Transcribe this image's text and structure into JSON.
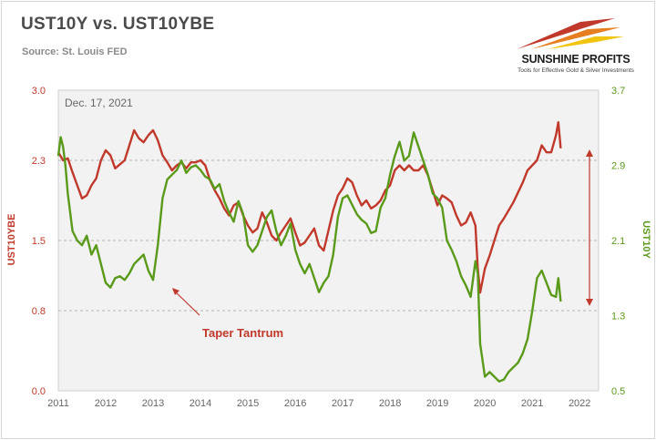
{
  "chart_data": {
    "type": "line",
    "title": "UST10Y vs. UST10YBE",
    "subtitle": "Source: St. Louis FED",
    "date_label": "Dec. 17, 2021",
    "annotation": "Taper Tantrum",
    "x_ticks": [
      "2011",
      "2012",
      "2013",
      "2014",
      "2015",
      "2016",
      "2017",
      "2018",
      "2019",
      "2020",
      "2021",
      "2022"
    ],
    "xlim": [
      2011.0,
      2022.4
    ],
    "y_left": {
      "label": "UST10YBE",
      "ticks": [
        "0.0",
        "0.8",
        "1.5",
        "2.3",
        "3.0"
      ],
      "range": [
        0.0,
        3.0
      ],
      "color": "#c0392b"
    },
    "y_right": {
      "label": "UST10Y",
      "ticks": [
        "0.5",
        "1.3",
        "2.1",
        "2.9",
        "3.7"
      ],
      "range": [
        0.5,
        3.7
      ],
      "color": "#5a9a1a"
    },
    "grid": "horizontal dashed",
    "series": [
      {
        "axis": "left",
        "color": "#c0392b",
        "x": [
          2011.0,
          2011.1,
          2011.2,
          2011.3,
          2011.4,
          2011.5,
          2011.6,
          2011.7,
          2011.8,
          2011.9,
          2012.0,
          2012.1,
          2012.2,
          2012.3,
          2012.4,
          2012.5,
          2012.6,
          2012.7,
          2012.8,
          2012.9,
          2013.0,
          2013.1,
          2013.2,
          2013.3,
          2013.4,
          2013.5,
          2013.6,
          2013.7,
          2013.8,
          2013.9,
          2014.0,
          2014.1,
          2014.2,
          2014.3,
          2014.4,
          2014.5,
          2014.6,
          2014.7,
          2014.8,
          2014.9,
          2015.0,
          2015.1,
          2015.2,
          2015.3,
          2015.4,
          2015.5,
          2015.6,
          2015.7,
          2015.8,
          2015.9,
          2016.0,
          2016.1,
          2016.2,
          2016.3,
          2016.4,
          2016.5,
          2016.6,
          2016.7,
          2016.8,
          2016.9,
          2017.0,
          2017.1,
          2017.2,
          2017.3,
          2017.4,
          2017.5,
          2017.6,
          2017.7,
          2017.8,
          2017.9,
          2018.0,
          2018.1,
          2018.2,
          2018.3,
          2018.4,
          2018.5,
          2018.6,
          2018.7,
          2018.8,
          2018.9,
          2019.0,
          2019.1,
          2019.2,
          2019.3,
          2019.4,
          2019.5,
          2019.6,
          2019.7,
          2019.8,
          2019.85,
          2019.9,
          2020.0,
          2020.1,
          2020.2,
          2020.3,
          2020.4,
          2020.5,
          2020.6,
          2020.7,
          2020.8,
          2020.9,
          2021.0,
          2021.1,
          2021.2,
          2021.3,
          2021.4,
          2021.5,
          2021.55,
          2021.6
        ],
        "values": [
          2.38,
          2.3,
          2.32,
          2.18,
          2.05,
          1.92,
          1.95,
          2.05,
          2.12,
          2.3,
          2.4,
          2.35,
          2.22,
          2.26,
          2.3,
          2.45,
          2.6,
          2.52,
          2.48,
          2.55,
          2.6,
          2.5,
          2.35,
          2.28,
          2.2,
          2.25,
          2.28,
          2.22,
          2.28,
          2.28,
          2.3,
          2.25,
          2.1,
          2.0,
          1.92,
          1.82,
          1.75,
          1.85,
          1.88,
          1.75,
          1.65,
          1.58,
          1.62,
          1.78,
          1.68,
          1.55,
          1.5,
          1.58,
          1.65,
          1.72,
          1.58,
          1.45,
          1.48,
          1.55,
          1.62,
          1.45,
          1.4,
          1.6,
          1.8,
          1.95,
          2.02,
          2.12,
          2.08,
          1.95,
          1.85,
          1.9,
          1.82,
          1.85,
          1.9,
          2.0,
          2.05,
          2.2,
          2.25,
          2.2,
          2.25,
          2.2,
          2.2,
          2.25,
          2.15,
          2.0,
          1.85,
          1.95,
          1.92,
          1.88,
          1.75,
          1.65,
          1.68,
          1.78,
          1.65,
          1.22,
          0.98,
          1.22,
          1.35,
          1.5,
          1.65,
          1.72,
          1.8,
          1.88,
          1.98,
          2.08,
          2.2,
          2.25,
          2.3,
          2.45,
          2.38,
          2.38,
          2.55,
          2.68,
          2.42
        ]
      },
      {
        "axis": "right",
        "color": "#5a9a1a",
        "x": [
          2011.0,
          2011.05,
          2011.1,
          2011.15,
          2011.2,
          2011.3,
          2011.4,
          2011.5,
          2011.6,
          2011.7,
          2011.8,
          2011.9,
          2012.0,
          2012.1,
          2012.2,
          2012.3,
          2012.4,
          2012.5,
          2012.6,
          2012.7,
          2012.8,
          2012.9,
          2013.0,
          2013.1,
          2013.2,
          2013.3,
          2013.4,
          2013.5,
          2013.6,
          2013.7,
          2013.8,
          2013.9,
          2014.0,
          2014.1,
          2014.2,
          2014.3,
          2014.4,
          2014.5,
          2014.6,
          2014.7,
          2014.8,
          2014.9,
          2015.0,
          2015.1,
          2015.2,
          2015.3,
          2015.4,
          2015.5,
          2015.6,
          2015.7,
          2015.8,
          2015.9,
          2016.0,
          2016.1,
          2016.2,
          2016.3,
          2016.4,
          2016.5,
          2016.6,
          2016.7,
          2016.8,
          2016.9,
          2017.0,
          2017.1,
          2017.2,
          2017.3,
          2017.4,
          2017.5,
          2017.6,
          2017.7,
          2017.8,
          2017.9,
          2018.0,
          2018.1,
          2018.2,
          2018.3,
          2018.4,
          2018.5,
          2018.6,
          2018.7,
          2018.8,
          2018.9,
          2019.0,
          2019.1,
          2019.2,
          2019.3,
          2019.4,
          2019.5,
          2019.6,
          2019.7,
          2019.8,
          2019.85,
          2019.9,
          2020.0,
          2020.1,
          2020.2,
          2020.3,
          2020.4,
          2020.5,
          2020.6,
          2020.7,
          2020.8,
          2020.9,
          2021.0,
          2021.1,
          2021.2,
          2021.3,
          2021.4,
          2021.5,
          2021.55,
          2021.6
        ],
        "values": [
          3.0,
          3.2,
          3.1,
          2.9,
          2.6,
          2.2,
          2.1,
          2.05,
          2.15,
          1.95,
          2.05,
          1.85,
          1.65,
          1.6,
          1.7,
          1.72,
          1.68,
          1.75,
          1.85,
          1.9,
          1.95,
          1.78,
          1.68,
          2.05,
          2.55,
          2.75,
          2.8,
          2.85,
          2.95,
          2.82,
          2.88,
          2.9,
          2.85,
          2.78,
          2.75,
          2.65,
          2.7,
          2.52,
          2.4,
          2.3,
          2.52,
          2.38,
          2.05,
          1.98,
          2.05,
          2.2,
          2.35,
          2.42,
          2.2,
          2.05,
          2.15,
          2.28,
          2.0,
          1.85,
          1.75,
          1.85,
          1.7,
          1.55,
          1.65,
          1.72,
          1.95,
          2.35,
          2.55,
          2.58,
          2.48,
          2.38,
          2.32,
          2.28,
          2.18,
          2.2,
          2.45,
          2.55,
          2.8,
          3.0,
          3.15,
          2.95,
          3.0,
          3.25,
          3.1,
          2.95,
          2.8,
          2.6,
          2.55,
          2.45,
          2.1,
          2.0,
          1.88,
          1.72,
          1.62,
          1.5,
          1.88,
          1.75,
          1.0,
          0.65,
          0.7,
          0.65,
          0.6,
          0.62,
          0.7,
          0.75,
          0.8,
          0.9,
          1.05,
          1.35,
          1.7,
          1.78,
          1.65,
          1.52,
          1.5,
          1.7,
          1.45
        ]
      }
    ]
  },
  "logo": {
    "name": "SUNSHINE PROFITS",
    "tagline": "Tools for Effective Gold & Silver Investments"
  }
}
